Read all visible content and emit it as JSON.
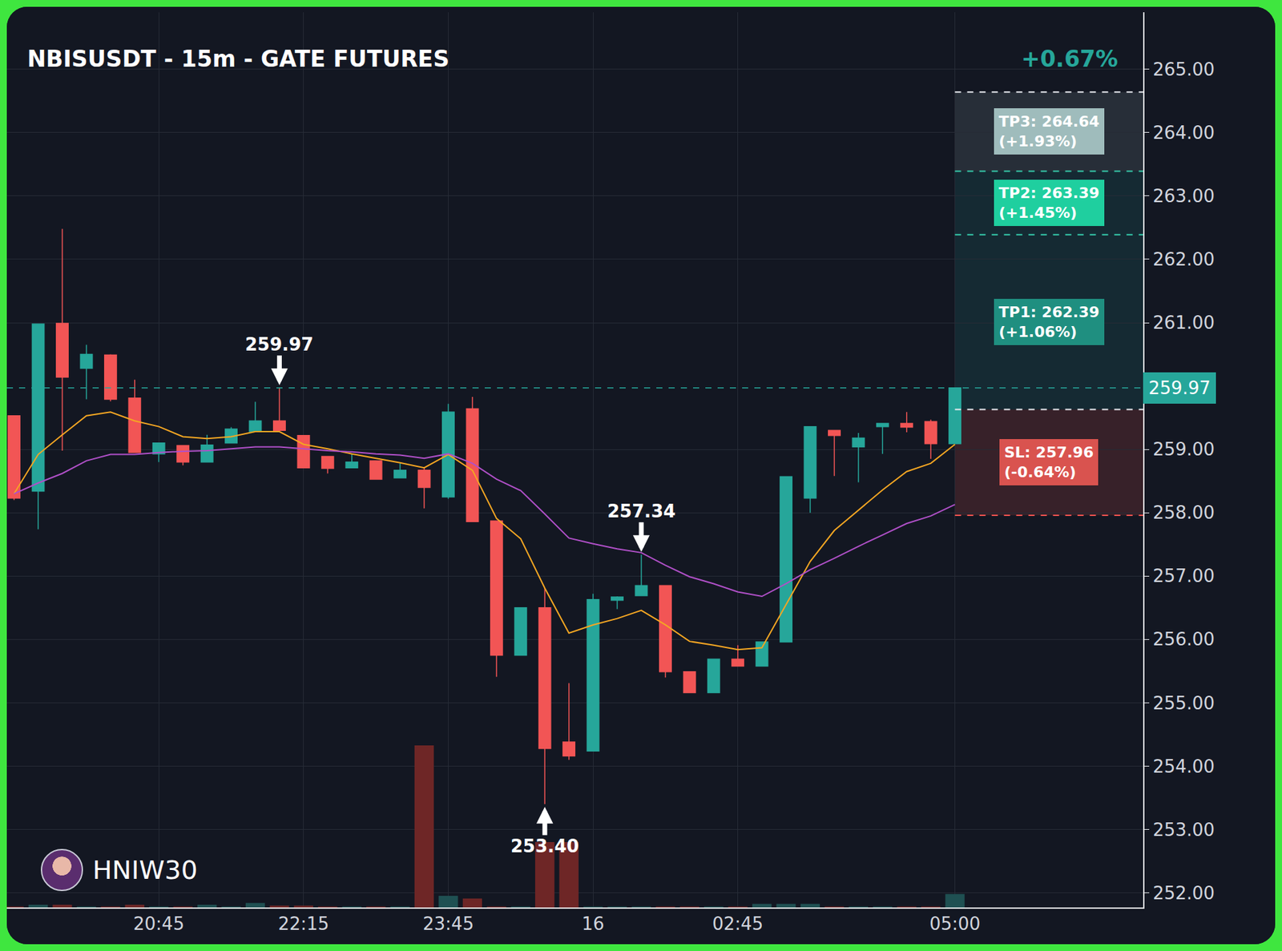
{
  "chart_data": {
    "type": "candlestick",
    "title": "NBISUSDT - 15m - GATE FUTURES",
    "change_label": "+0.67%",
    "watermark": "HNIW30",
    "categories": [
      null,
      null,
      null,
      null,
      null,
      null,
      "20:45",
      null,
      null,
      null,
      null,
      null,
      "22:15",
      null,
      null,
      null,
      null,
      null,
      "23:45",
      null,
      null,
      null,
      null,
      null,
      "16",
      null,
      null,
      null,
      null,
      null,
      "02:45",
      null,
      null,
      null,
      null,
      null,
      null,
      null,
      null,
      "05:00"
    ],
    "xlim": [
      -0.3,
      46.8
    ],
    "ylim": [
      251.77,
      265.9
    ],
    "yticks": [
      {
        "value": 252,
        "label": "252.00"
      },
      {
        "value": 253,
        "label": "253.00"
      },
      {
        "value": 254,
        "label": "254.00"
      },
      {
        "value": 255,
        "label": "255.00"
      },
      {
        "value": 256,
        "label": "256.00"
      },
      {
        "value": 257,
        "label": "257.00"
      },
      {
        "value": 258,
        "label": "258.00"
      },
      {
        "value": 259,
        "label": "259.00"
      },
      {
        "value": 261,
        "label": "261.00"
      },
      {
        "value": 262,
        "label": "262.00"
      },
      {
        "value": 263,
        "label": "263.00"
      },
      {
        "value": 264,
        "label": "264.00"
      },
      {
        "value": 265,
        "label": "265.00"
      }
    ],
    "y2lim": [
      0,
      100
    ],
    "y2ticks": [],
    "grid": true,
    "series": [
      {
        "type": "bar",
        "axis": "y2",
        "values": [
          0.1,
          0.3,
          0.3,
          0.1,
          0.1,
          0.3,
          0.1,
          0.1,
          0.3,
          0.1,
          0.5,
          0.2,
          0.2,
          0.1,
          0.1,
          0.1,
          0.1,
          18.1,
          1.3,
          1.0,
          0.1,
          0.1,
          7.3,
          7.3,
          0.1,
          0.1,
          0.1,
          0.1,
          0.1,
          0.1,
          0.1,
          0.4,
          0.4,
          0.4,
          0.1,
          0.1,
          0.1,
          0.1,
          0.1,
          1.5
        ],
        "colors": [
          "#6e2626",
          "#1f5052",
          "#6e2626",
          "#1f5052",
          "#6e2626",
          "#6e2626",
          "#1f5052",
          "#6e2626",
          "#1f5052",
          "#1f5052",
          "#1f5052",
          "#6e2626",
          "#6e2626",
          "#6e2626",
          "#1f5052",
          "#6e2626",
          "#1f5052",
          "#6e2626",
          "#1f5052",
          "#6e2626",
          "#6e2626",
          "#1f5052",
          "#6e2626",
          "#6e2626",
          "#1f5052",
          "#1f5052",
          "#1f5052",
          "#6e2626",
          "#6e2626",
          "#1f5052",
          "#6e2626",
          "#1f5052",
          "#1f5052",
          "#1f5052",
          "#6e2626",
          "#1f5052",
          "#1f5052",
          "#6e2626",
          "#6e2626",
          "#1f5052"
        ]
      },
      {
        "type": "candlestick",
        "colors": {
          "increasing": "#26a69a",
          "decreasing": "#f25555"
        },
        "open": [
          259.53,
          258.34,
          260.99,
          260.28,
          260.49,
          259.81,
          258.93,
          259.06,
          258.8,
          259.1,
          259.28,
          259.45,
          259.22,
          258.89,
          258.71,
          258.82,
          258.55,
          258.67,
          258.25,
          259.64,
          257.87,
          255.75,
          256.5,
          254.38,
          254.24,
          256.62,
          256.69,
          256.85,
          255.49,
          255.16,
          255.69,
          255.58,
          255.96,
          258.23,
          259.3,
          259.04,
          259.36,
          259.41,
          259.44,
          259.09
        ],
        "high": [
          259.53,
          260.98,
          262.48,
          260.65,
          260.5,
          260.1,
          259.1,
          259.06,
          259.23,
          259.35,
          259.75,
          259.97,
          259.22,
          258.89,
          258.93,
          258.82,
          258.78,
          258.7,
          259.72,
          259.83,
          257.87,
          256.5,
          256.81,
          255.31,
          256.72,
          256.68,
          257.34,
          256.85,
          255.49,
          255.69,
          255.91,
          255.96,
          258.57,
          259.36,
          259.3,
          259.26,
          259.41,
          259.59,
          259.47,
          259.97
        ],
        "low": [
          258.2,
          257.74,
          258.98,
          259.79,
          259.76,
          258.95,
          258.8,
          258.75,
          258.8,
          259.1,
          259.28,
          259.28,
          258.71,
          258.62,
          258.7,
          258.53,
          258.55,
          258.07,
          258.22,
          257.86,
          255.41,
          255.75,
          253.4,
          254.1,
          254.24,
          256.48,
          256.69,
          255.4,
          255.16,
          255.16,
          255.58,
          255.58,
          255.96,
          258.0,
          258.58,
          258.48,
          258.93,
          259.27,
          258.85,
          259.09
        ],
        "close": [
          258.23,
          260.98,
          260.14,
          260.5,
          259.79,
          258.95,
          259.1,
          258.8,
          259.07,
          259.32,
          259.45,
          259.3,
          258.71,
          258.7,
          258.8,
          258.53,
          258.67,
          258.4,
          259.59,
          257.86,
          255.75,
          256.5,
          254.28,
          254.16,
          256.63,
          256.67,
          256.85,
          255.49,
          255.16,
          255.69,
          255.58,
          255.96,
          258.57,
          259.36,
          259.22,
          259.18,
          259.41,
          259.35,
          259.09,
          259.97
        ]
      },
      {
        "type": "line",
        "color": "#f5a623",
        "values": [
          258.3,
          258.92,
          259.23,
          259.53,
          259.59,
          259.45,
          259.36,
          259.2,
          259.17,
          259.2,
          259.28,
          259.28,
          259.08,
          259.01,
          258.93,
          258.86,
          258.79,
          258.71,
          258.92,
          258.67,
          257.91,
          257.59,
          256.81,
          256.1,
          256.23,
          256.33,
          256.46,
          256.23,
          255.97,
          255.91,
          255.84,
          255.87,
          256.55,
          257.23,
          257.72,
          258.04,
          258.36,
          258.65,
          258.78,
          259.08
        ]
      },
      {
        "type": "line",
        "color": "#b050c8",
        "values": [
          258.3,
          258.47,
          258.62,
          258.82,
          258.92,
          258.92,
          258.95,
          258.97,
          258.98,
          259.01,
          259.04,
          259.04,
          259.01,
          258.98,
          258.96,
          258.93,
          258.91,
          258.86,
          258.93,
          258.78,
          258.53,
          258.35,
          257.98,
          257.6,
          257.51,
          257.43,
          257.37,
          257.17,
          256.99,
          256.88,
          256.75,
          256.68,
          256.88,
          257.1,
          257.28,
          257.47,
          257.65,
          257.83,
          257.95,
          258.13
        ]
      }
    ],
    "annotations": [
      {
        "text": "259.97",
        "x": 11,
        "y": 259.97,
        "marker": "arrow_down"
      },
      {
        "text": "253.40",
        "x": 22,
        "y": 253.4,
        "marker": "arrow_up"
      },
      {
        "text": "257.34",
        "x": 26,
        "y": 257.34,
        "marker": "arrow_down"
      }
    ],
    "last_price": {
      "value": 259.97,
      "label": "259.97",
      "color": "#26a69a"
    },
    "trade_levels": {
      "start": 39,
      "entry": 259.63,
      "targets": [
        {
          "label": "TP1: 262.39",
          "change": "(+1.06%)",
          "value": 262.39,
          "color": "#1f8f80"
        },
        {
          "label": "TP2: 263.39",
          "change": "(+1.45%)",
          "value": 263.39,
          "color": "#1fcf9f"
        },
        {
          "label": "TP3: 264.64",
          "change": "(+1.93%)",
          "value": 264.64,
          "color": "#9fbcbc"
        }
      ],
      "stop": {
        "label": "SL: 257.96",
        "change": "(-0.64%)",
        "value": 257.96,
        "color": "#d9534f"
      }
    }
  }
}
